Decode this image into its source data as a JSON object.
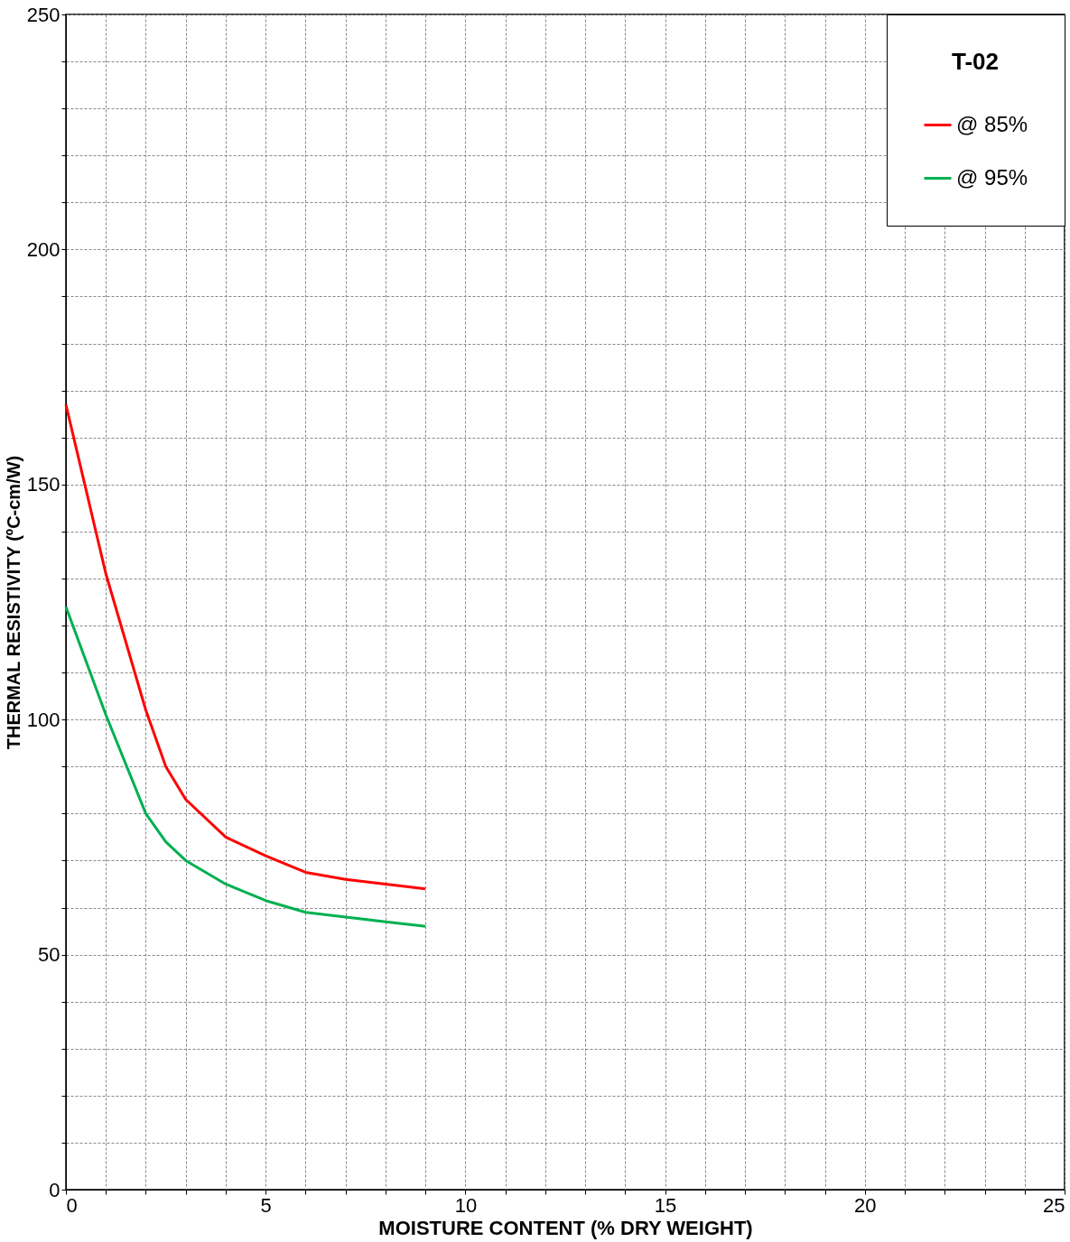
{
  "chart_data": {
    "type": "line",
    "xlabel": "MOISTURE CONTENT (% DRY WEIGHT)",
    "ylabel": "THERMAL RESISTIVITY (ºC-cm/W)",
    "legend_title": "T-02",
    "x": [
      0,
      1,
      2,
      2.5,
      3,
      4,
      5,
      6,
      7,
      8,
      9
    ],
    "series": [
      {
        "name": "@ 85%",
        "color": "#ff0000",
        "values": [
          167,
          131,
          102,
          90,
          83,
          75,
          71,
          67.5,
          66,
          65,
          64
        ]
      },
      {
        "name": "@ 95%",
        "color": "#00b050",
        "values": [
          124,
          101,
          80,
          74,
          70,
          65,
          61.5,
          59,
          58,
          57,
          56
        ]
      }
    ],
    "xlim": [
      0,
      25
    ],
    "ylim": [
      0,
      250
    ],
    "xticks": [
      0,
      {
        "value": 1,
        "label": null
      },
      {
        "value": 2,
        "label": null
      },
      {
        "value": 3,
        "label": null
      },
      {
        "value": 4,
        "label": null
      },
      5,
      {
        "value": 6,
        "label": null
      },
      {
        "value": 7,
        "label": null
      },
      {
        "value": 8,
        "label": null
      },
      {
        "value": 9,
        "label": null
      },
      10,
      {
        "value": 11,
        "label": null
      },
      {
        "value": 12,
        "label": null
      },
      {
        "value": 13,
        "label": null
      },
      {
        "value": 14,
        "label": null
      },
      15,
      {
        "value": 16,
        "label": null
      },
      {
        "value": 17,
        "label": null
      },
      {
        "value": 18,
        "label": null
      },
      {
        "value": 19,
        "label": null
      },
      20,
      {
        "value": 21,
        "label": null
      },
      {
        "value": 22,
        "label": null
      },
      {
        "value": 23,
        "label": null
      },
      {
        "value": 24,
        "label": null
      },
      25
    ],
    "yticks": [
      0,
      {
        "value": 10,
        "label": null
      },
      {
        "value": 20,
        "label": null
      },
      {
        "value": 30,
        "label": null
      },
      {
        "value": 40,
        "label": null
      },
      50,
      {
        "value": 60,
        "label": null
      },
      {
        "value": 70,
        "label": null
      },
      {
        "value": 80,
        "label": null
      },
      {
        "value": 90,
        "label": null
      },
      100,
      {
        "value": 110,
        "label": null
      },
      {
        "value": 120,
        "label": null
      },
      {
        "value": 130,
        "label": null
      },
      {
        "value": 140,
        "label": null
      },
      150,
      {
        "value": 160,
        "label": null
      },
      {
        "value": 170,
        "label": null
      },
      {
        "value": 180,
        "label": null
      },
      {
        "value": 190,
        "label": null
      },
      200,
      {
        "value": 210,
        "label": null
      },
      {
        "value": 220,
        "label": null
      },
      {
        "value": 230,
        "label": null
      },
      {
        "value": 240,
        "label": null
      },
      250
    ],
    "grid": true,
    "legend": "top right",
    "marker": "none",
    "line_style": "solid"
  }
}
